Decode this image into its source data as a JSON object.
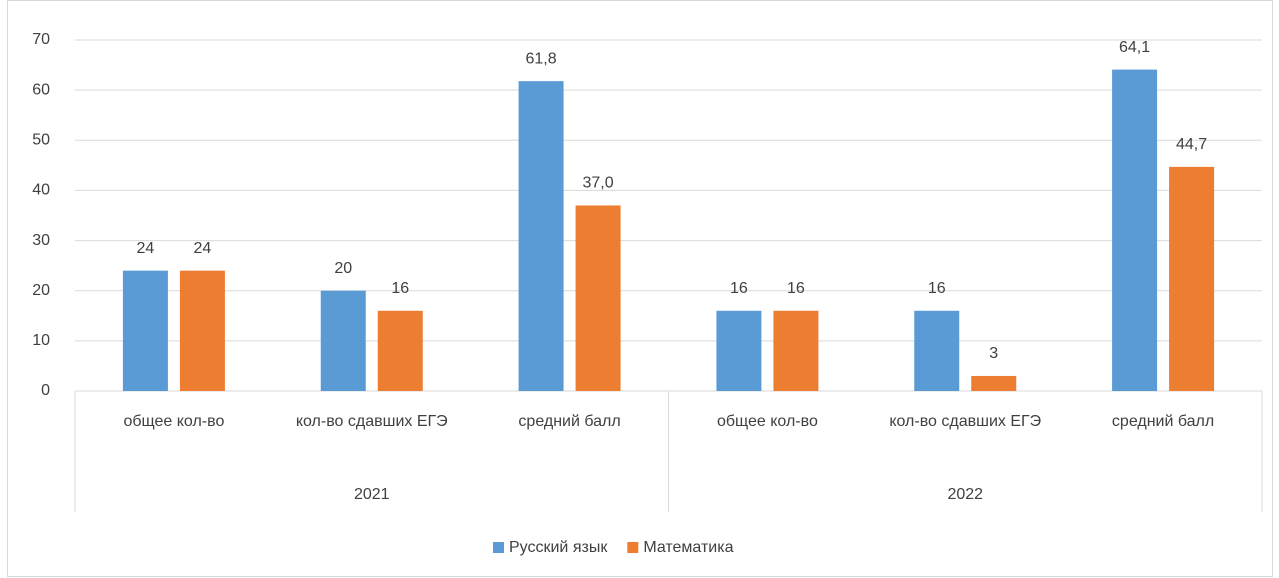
{
  "chart_data": {
    "type": "bar",
    "categories": [
      "общее кол-во",
      "кол-во сдавших ЕГЭ",
      "средний балл",
      "общее кол-во",
      "кол-во сдавших ЕГЭ",
      "средний балл"
    ],
    "group_labels": [
      "2021",
      "2022"
    ],
    "series": [
      {
        "name": "Русский язык",
        "color": "#5b9bd5",
        "values": [
          24,
          20,
          61.8,
          16,
          16,
          64.1
        ],
        "value_labels": [
          "24",
          "20",
          "61,8",
          "16",
          "16",
          "64,1"
        ]
      },
      {
        "name": "Математика",
        "color": "#ed7d31",
        "values": [
          24,
          16,
          37.0,
          16,
          3,
          44.7
        ],
        "value_labels": [
          "24",
          "16",
          "37,0",
          "16",
          "3",
          "44,7"
        ]
      }
    ],
    "ylim": [
      0,
      70
    ],
    "yticks": [
      0,
      10,
      20,
      30,
      40,
      50,
      60,
      70
    ],
    "grid": true,
    "legend": "bottom"
  }
}
